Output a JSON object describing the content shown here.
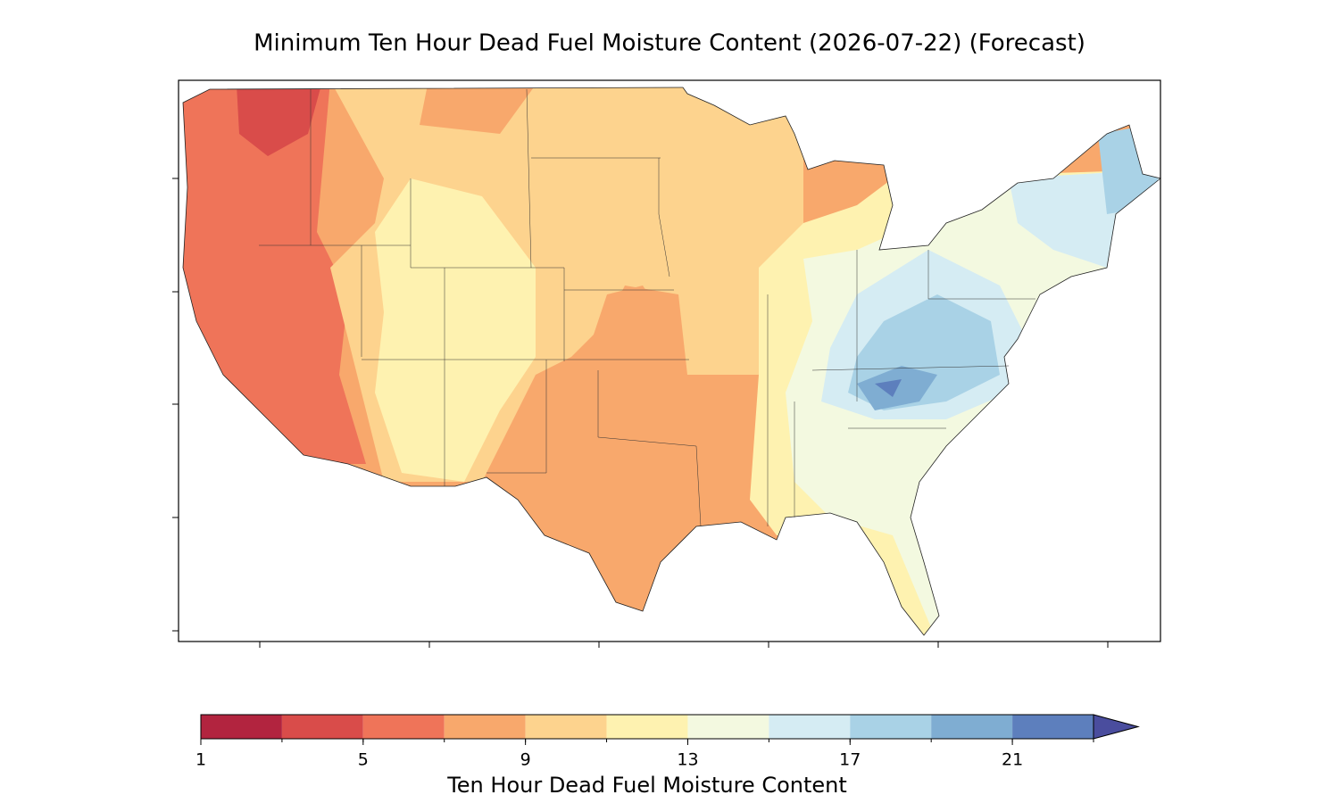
{
  "title": "Minimum Ten Hour Dead Fuel Moisture Content (2026-07-22) (Forecast)",
  "colorbar": {
    "label": "Ten Hour Dead Fuel Moisture Content",
    "levels": [
      1,
      3,
      5,
      7,
      9,
      11,
      13,
      15,
      17,
      19,
      21,
      23
    ],
    "colors": [
      "#b2243f",
      "#d94c4a",
      "#ef7459",
      "#f8a86c",
      "#fdd38e",
      "#fef2b0",
      "#f3f9e0",
      "#d5ecf3",
      "#a9d2e6",
      "#7fadd2",
      "#5d7fbd"
    ],
    "extend_color": "#4a4d9e",
    "ticks": [
      1,
      5,
      9,
      13,
      17,
      21
    ]
  }
}
